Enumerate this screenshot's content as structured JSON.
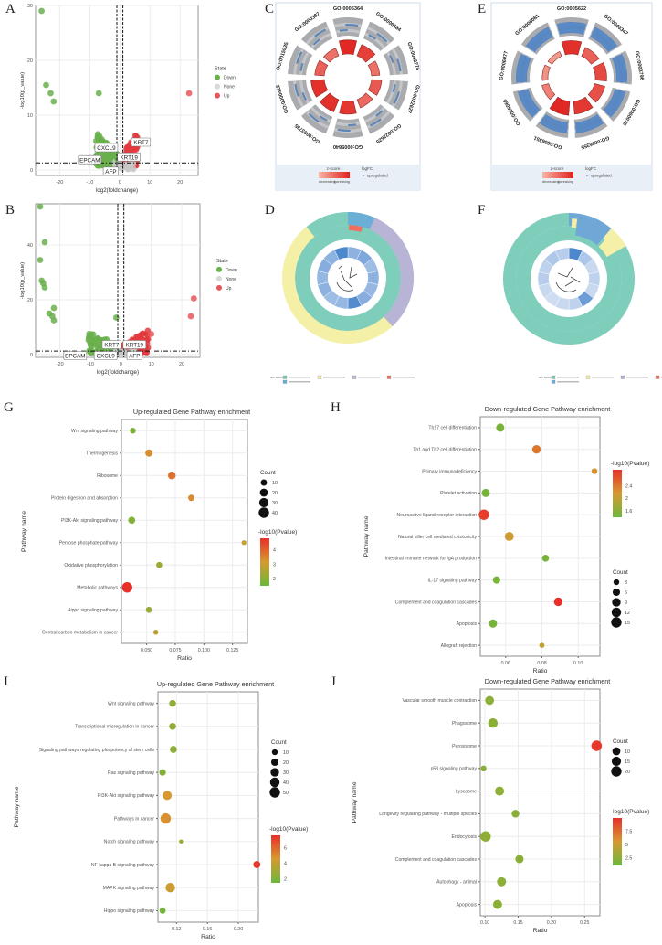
{
  "panels": {
    "A": {
      "letter": "A"
    },
    "B": {
      "letter": "B"
    },
    "C": {
      "letter": "C"
    },
    "D": {
      "letter": "D"
    },
    "E": {
      "letter": "E"
    },
    "F": {
      "letter": "F"
    },
    "G": {
      "letter": "G"
    },
    "H": {
      "letter": "H"
    },
    "I": {
      "letter": "I"
    },
    "J": {
      "letter": "J"
    }
  },
  "chart_data": [
    {
      "id": "A",
      "type": "scatter",
      "title": "",
      "xlabel": "log2(foldchange)",
      "ylabel": "-log10(p_value)",
      "xlim": [
        -28,
        26
      ],
      "ylim": [
        -1,
        30
      ],
      "xticks": [
        -20,
        -10,
        0,
        10,
        20
      ],
      "yticks": [
        0,
        10,
        20,
        30
      ],
      "thresholds": {
        "x": [
          -1,
          1
        ],
        "y": 1.3
      },
      "legend": {
        "title": "State",
        "entries": [
          {
            "label": "Down",
            "color": "#6ab04c"
          },
          {
            "label": "None",
            "color": "#d9d9d9"
          },
          {
            "label": "Up",
            "color": "#e8565a"
          }
        ]
      },
      "points": [
        {
          "x": -26,
          "y": 29,
          "state": "Down"
        },
        {
          "x": -24.5,
          "y": 15.5,
          "state": "Down"
        },
        {
          "x": -23,
          "y": 14,
          "state": "Down"
        },
        {
          "x": -22,
          "y": 12.5,
          "state": "Down"
        },
        {
          "x": -7,
          "y": 14,
          "state": "Down"
        },
        {
          "x": 23,
          "y": 14,
          "state": "Up"
        }
      ],
      "cluster": {
        "down": {
          "xmin": -8,
          "xmax": -0.5,
          "ymax": 7
        },
        "up": {
          "xmin": 0.5,
          "xmax": 6,
          "ymax": 7
        }
      },
      "labels": [
        {
          "text": "CXCL9",
          "x": -4.5,
          "y": 4
        },
        {
          "text": "KRT7",
          "x": 7,
          "y": 5
        },
        {
          "text": "KRT19",
          "x": 3,
          "y": 2.3
        },
        {
          "text": "EPCAM",
          "x": -10,
          "y": 1.8
        },
        {
          "text": "AFP",
          "x": -3,
          "y": -0.3
        }
      ]
    },
    {
      "id": "B",
      "type": "scatter",
      "title": "",
      "xlabel": "log2(foldchange)",
      "ylabel": "-log10(p_value)",
      "xlim": [
        -28,
        26
      ],
      "ylim": [
        -1,
        55
      ],
      "xticks": [
        -20,
        -10,
        0,
        10,
        20
      ],
      "yticks": [
        0,
        20,
        40
      ],
      "thresholds": {
        "x": [
          -1,
          1
        ],
        "y": 1.3
      },
      "legend": {
        "title": "State",
        "entries": [
          {
            "label": "Down",
            "color": "#6ab04c"
          },
          {
            "label": "None",
            "color": "#d9d9d9"
          },
          {
            "label": "Up",
            "color": "#e8565a"
          }
        ]
      },
      "points": [
        {
          "x": -26.5,
          "y": 54,
          "state": "Down"
        },
        {
          "x": -25,
          "y": 41,
          "state": "Down"
        },
        {
          "x": -26.5,
          "y": 34.5,
          "state": "Down"
        },
        {
          "x": -26,
          "y": 27,
          "state": "Down"
        },
        {
          "x": -25.5,
          "y": 26,
          "state": "Down"
        },
        {
          "x": -25,
          "y": 24.5,
          "state": "Down"
        },
        {
          "x": -22,
          "y": 17,
          "state": "Down"
        },
        {
          "x": -23.5,
          "y": 15,
          "state": "Down"
        },
        {
          "x": -22.5,
          "y": 14,
          "state": "Down"
        },
        {
          "x": -22,
          "y": 12.5,
          "state": "Down"
        },
        {
          "x": -1.5,
          "y": 13.5,
          "state": "Down"
        },
        {
          "x": 24,
          "y": 20.5,
          "state": "Up"
        },
        {
          "x": 23,
          "y": 14,
          "state": "Up"
        },
        {
          "x": 10,
          "y": 7.5,
          "state": "Up"
        }
      ],
      "cluster": {
        "down": {
          "xmin": -11,
          "xmax": -0.5,
          "ymax": 9
        },
        "up": {
          "xmin": 0.5,
          "xmax": 9,
          "ymax": 9
        }
      },
      "labels": [
        {
          "text": "KRT7",
          "x": -3,
          "y": 3.5
        },
        {
          "text": "KRT19",
          "x": 4.5,
          "y": 3.5
        },
        {
          "text": "EPCAM",
          "x": -15,
          "y": -0.5
        },
        {
          "text": "CXCL9",
          "x": -5,
          "y": -0.5
        },
        {
          "text": "AFP",
          "x": 4.5,
          "y": -0.5
        }
      ]
    },
    {
      "id": "C",
      "type": "circular-go-plot",
      "terms": [
        "GO:0006364",
        "GO:0006184",
        "GO:0042274",
        "GO:0022627",
        "GO:0022625",
        "GO:0005840",
        "GO:0003735",
        "GO:0000412",
        "GO:0015935",
        "GO:0000387"
      ],
      "zscore_intensity": [
        0.95,
        0.8,
        0.5,
        0.65,
        0.55,
        0.85,
        0.9,
        0.9,
        0.6,
        0.5
      ],
      "legend": {
        "zscore_title": "z-score",
        "low": "decreasing",
        "high": "increasing",
        "logfc_title": "logFC",
        "logfc_entry": "upregulated"
      }
    },
    {
      "id": "E",
      "type": "circular-go-plot",
      "terms": [
        "GO:0005622",
        "GO:0043347",
        "GO:0003796",
        "GO:0060075",
        "GO:0006355",
        "GO:0006351",
        "GO:0006066",
        "GO:0006077",
        "GO:0006081"
      ],
      "zscore_intensity": [
        0.9,
        0.6,
        0.75,
        0.7,
        0.85,
        0.95,
        0.4,
        0.3,
        0.25
      ],
      "legend": {
        "zscore_title": "z-score",
        "low": "decreasing",
        "high": "increasing",
        "logfc_title": "logFC",
        "logfc_entry": "upregulated"
      }
    },
    {
      "id": "D",
      "type": "circular-dendrogram",
      "outer_ring": [
        {
          "category": "green",
          "start": 0.0,
          "end": 0.06,
          "color": "#7fcdbb"
        },
        {
          "category": "blue-top",
          "start": 0.0,
          "end": 0.08,
          "color": "#6baed6"
        },
        {
          "category": "lavender",
          "start": 0.08,
          "end": 0.38,
          "color": "#b8b4d6"
        },
        {
          "category": "yellow",
          "start": 0.38,
          "end": 0.85,
          "color": "#f5f0a8"
        },
        {
          "category": "green-tail",
          "start": 0.85,
          "end": 1.0,
          "color": "#7fcdbb"
        }
      ],
      "legend_title": "GO Terms"
    },
    {
      "id": "F",
      "type": "circular-dendrogram",
      "outer_ring": [
        {
          "category": "blue",
          "start": 0.0,
          "end": 0.08,
          "color": "#6fa8d6"
        },
        {
          "category": "yellow",
          "start": 0.08,
          "end": 0.14,
          "color": "#f5f0a8"
        },
        {
          "category": "green",
          "start": 0.14,
          "end": 1.0,
          "color": "#7fcdbb"
        }
      ],
      "legend_title": "GO Terms"
    },
    {
      "id": "G",
      "type": "scatter",
      "title": "Up-regulated Gene Pathway enrichment",
      "xlabel": "Ratio",
      "ylabel": "Pathway name",
      "xlim": [
        0.028,
        0.138
      ],
      "xticks": [
        0.05,
        0.075,
        0.1,
        0.125
      ],
      "xtick_labels": [
        "0.050",
        "0.075",
        "0.100",
        "0.125"
      ],
      "categories": [
        "Wnt signaling pathway",
        "Thermogenesis",
        "Ribosome",
        "Protein digestion and absorption",
        "PI3K-Akt signaling pathway",
        "Pentose phosphate pathway",
        "Oxidative phosphorylation",
        "Metabolic pathways",
        "Hippo signaling pathway",
        "Central carbon metabolism in cancer"
      ],
      "x": [
        0.038,
        0.052,
        0.072,
        0.089,
        0.037,
        0.135,
        0.061,
        0.033,
        0.052,
        0.058
      ],
      "count": [
        8,
        15,
        18,
        10,
        14,
        4,
        9,
        40,
        9,
        5
      ],
      "neglog10p": [
        1.8,
        3.3,
        3.8,
        3.4,
        1.9,
        3.0,
        2.3,
        4.8,
        2.2,
        2.8
      ],
      "size_legend": {
        "title": "Count",
        "values": [
          10,
          20,
          30,
          40
        ]
      },
      "color_legend": {
        "title": "-log10(Pvalue)",
        "ticks": [
          2,
          3,
          4
        ],
        "range": [
          1.5,
          4.8
        ]
      }
    },
    {
      "id": "H",
      "type": "scatter",
      "title": "Down-regulated Gene Pathway enrichment",
      "xlabel": "Ratio",
      "ylabel": "Pathway name",
      "xlim": [
        0.046,
        0.112
      ],
      "xticks": [
        0.06,
        0.08,
        0.1
      ],
      "xtick_labels": [
        "0.06",
        "0.08",
        "0.10"
      ],
      "categories": [
        "Th17 cell differentiation",
        "Th1 and Th2 cell differentiation",
        "Primary immunodeficiency",
        "Platelet activation",
        "Neuroactive ligand-receptor interaction",
        "Natural killer cell mediated cytotoxicity",
        "Intestinal immune network for IgA production",
        "IL-17 signaling pathway",
        "Complement and coagulation cascades",
        "Apoptosis",
        "Allograft rejection"
      ],
      "x": [
        0.057,
        0.077,
        0.109,
        0.049,
        0.048,
        0.062,
        0.082,
        0.055,
        0.089,
        0.053,
        0.08
      ],
      "count": [
        8,
        9,
        3,
        8,
        15,
        10,
        5,
        6,
        9,
        8,
        2
      ],
      "neglog10p": [
        1.5,
        2.4,
        2.2,
        1.5,
        2.8,
        2.1,
        1.5,
        1.5,
        2.9,
        1.5,
        2.0
      ],
      "size_legend": {
        "title": "Count",
        "values": [
          3,
          6,
          9,
          12,
          15
        ]
      },
      "color_legend": {
        "title": "-log10(Pvalue)",
        "ticks": [
          1.6,
          2.0,
          2.4
        ],
        "range": [
          1.4,
          2.9
        ]
      }
    },
    {
      "id": "I",
      "type": "scatter",
      "title": "Up-regulated Gene Pathway enrichment",
      "xlabel": "Ratio",
      "ylabel": "Pathway name",
      "xlim": [
        0.096,
        0.226
      ],
      "xticks": [
        0.12,
        0.16,
        0.2
      ],
      "xtick_labels": [
        "0.12",
        "0.16",
        "0.20"
      ],
      "categories": [
        "Wnt signaling pathway",
        "Transcriptional misregulation in cancer",
        "Signaling pathways regulating pluripotency of stem cells",
        "Ras signaling pathway",
        "PI3K-Akt signaling pathway",
        "Pathways in cancer",
        "Notch signaling pathway",
        "NF-kappa B signaling pathway",
        "MAPK signaling pathway",
        "Hippo signaling pathway"
      ],
      "x": [
        0.115,
        0.115,
        0.116,
        0.102,
        0.108,
        0.106,
        0.126,
        0.224,
        0.112,
        0.102
      ],
      "count": [
        16,
        17,
        17,
        14,
        35,
        50,
        3,
        18,
        40,
        12
      ],
      "neglog10p": [
        2.6,
        2.6,
        2.5,
        2.2,
        4.6,
        4.8,
        3.0,
        7.5,
        4.2,
        1.8
      ],
      "size_legend": {
        "title": "Count",
        "values": [
          10,
          20,
          30,
          40,
          50
        ]
      },
      "color_legend": {
        "title": "-log10(Pvalue)",
        "ticks": [
          2,
          4,
          6
        ],
        "range": [
          1.5,
          7.6
        ]
      }
    },
    {
      "id": "J",
      "type": "scatter",
      "title": "Down-regulated Gene Pathway enrichment",
      "xlabel": "Ratio",
      "ylabel": "Pathway name",
      "xlim": [
        0.093,
        0.273
      ],
      "xticks": [
        0.1,
        0.15,
        0.2,
        0.25
      ],
      "xtick_labels": [
        "0.10",
        "0.15",
        "0.20",
        "0.25"
      ],
      "categories": [
        "Vascular smooth muscle contraction",
        "Phagosome",
        "Peroxisome",
        "p53 signaling pathway",
        "Lysosome",
        "Longevity regulating pathway - multiple species",
        "Endocytosis",
        "Complement and coagulation cascades",
        "Autophagy - animal",
        "Apoptosis"
      ],
      "x": [
        0.107,
        0.112,
        0.268,
        0.098,
        0.122,
        0.146,
        0.101,
        0.152,
        0.125,
        0.119
      ],
      "count": [
        13,
        16,
        20,
        4,
        14,
        9,
        20,
        11,
        14,
        14
      ],
      "neglog10p": [
        2.4,
        2.3,
        9.8,
        2.3,
        2.4,
        2.3,
        2.5,
        2.3,
        2.4,
        2.3
      ],
      "size_legend": {
        "title": "Count",
        "values": [
          10,
          15,
          20
        ]
      },
      "color_legend": {
        "title": "-log10(Pvalue)",
        "ticks": [
          2.5,
          5.0,
          7.5
        ],
        "range": [
          1.0,
          10
        ]
      }
    }
  ]
}
